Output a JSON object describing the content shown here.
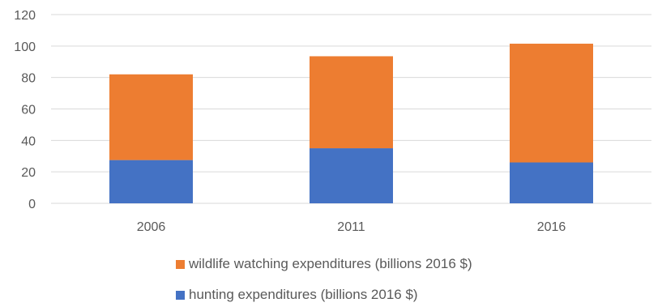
{
  "chart_data": {
    "type": "bar",
    "stacked": true,
    "categories": [
      "2006",
      "2011",
      "2016"
    ],
    "series": [
      {
        "name": "hunting expenditures (billions 2016 $)",
        "values": [
          27.5,
          35,
          26
        ],
        "color": "#4472C4"
      },
      {
        "name": "wildlife watching expenditures (billions 2016 $)",
        "values": [
          54.5,
          58.5,
          75.5
        ],
        "color": "#ED7D31"
      }
    ],
    "y_ticks": [
      "0",
      "20",
      "40",
      "60",
      "80",
      "100",
      "120"
    ],
    "ylim": [
      0,
      120
    ],
    "grid": true,
    "legend_position": "bottom"
  }
}
